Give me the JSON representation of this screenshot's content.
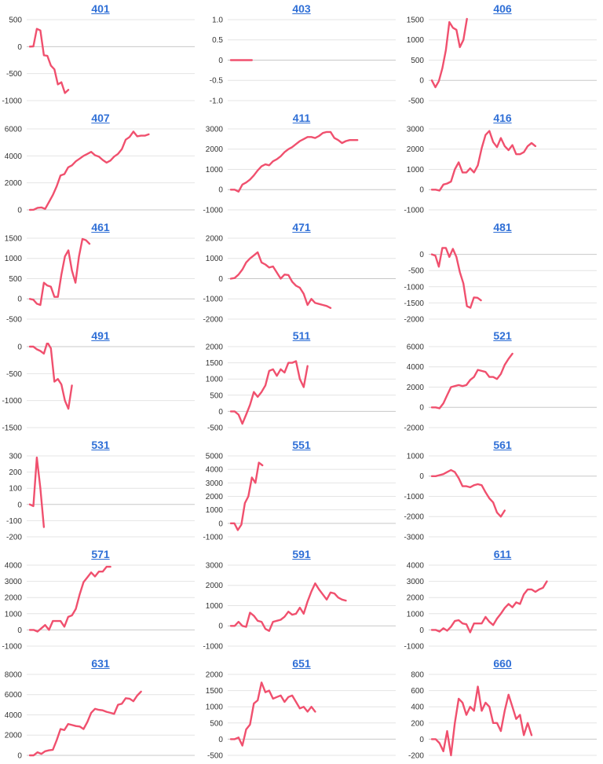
{
  "colors": {
    "series": "#f0506e",
    "title_link": "#2f6fd6"
  },
  "chart_data": [
    {
      "type": "line",
      "title": "401",
      "ylim": [
        -1000,
        500
      ],
      "yticks": [
        500,
        0,
        -500,
        -1000
      ],
      "grid": true,
      "n": 48,
      "values": [
        0,
        5,
        330,
        300,
        -160,
        -170,
        -350,
        -420,
        -700,
        -660,
        -860,
        -800
      ]
    },
    {
      "type": "line",
      "title": "403",
      "ylim": [
        -1.0,
        1.0
      ],
      "yticks": [
        1.0,
        0.5,
        0,
        -0.5,
        -1.0
      ],
      "grid": true,
      "n": 48,
      "values": [
        0,
        0,
        0,
        0,
        0,
        0,
        0
      ]
    },
    {
      "type": "line",
      "title": "406",
      "ylim": [
        -500,
        1500
      ],
      "yticks": [
        1500,
        1000,
        500,
        0,
        -500
      ],
      "grid": true,
      "n": 48,
      "values": [
        0,
        -170,
        -20,
        300,
        750,
        1440,
        1300,
        1250,
        820,
        1000,
        1520
      ]
    },
    {
      "type": "line",
      "title": "407",
      "ylim": [
        0,
        6000
      ],
      "yticks": [
        6000,
        4000,
        2000,
        0
      ],
      "grid": true,
      "n": 44,
      "values": [
        0,
        10,
        150,
        180,
        70,
        580,
        1100,
        1750,
        2550,
        2650,
        3150,
        3300,
        3600,
        3800,
        4000,
        4150,
        4300,
        4050,
        3950,
        3700,
        3500,
        3650,
        3950,
        4150,
        4500,
        5200,
        5400,
        5800,
        5450,
        5500,
        5500,
        5600
      ]
    },
    {
      "type": "line",
      "title": "411",
      "ylim": [
        -1000,
        3000
      ],
      "yticks": [
        3000,
        2000,
        1000,
        0,
        -1000
      ],
      "grid": true,
      "n": 44,
      "values": [
        0,
        0,
        -100,
        250,
        350,
        500,
        700,
        950,
        1150,
        1250,
        1200,
        1400,
        1500,
        1650,
        1850,
        2000,
        2100,
        2250,
        2400,
        2500,
        2600,
        2600,
        2550,
        2650,
        2800,
        2850,
        2850,
        2550,
        2450,
        2300,
        2400,
        2450,
        2450,
        2450
      ]
    },
    {
      "type": "line",
      "title": "416",
      "ylim": [
        -1000,
        3000
      ],
      "yticks": [
        3000,
        2000,
        1000,
        0,
        -1000
      ],
      "grid": true,
      "n": 44,
      "values": [
        0,
        0,
        -50,
        250,
        300,
        400,
        1000,
        1350,
        850,
        850,
        1050,
        850,
        1200,
        2050,
        2700,
        2900,
        2350,
        2100,
        2550,
        2150,
        1950,
        2200,
        1750,
        1750,
        1850,
        2150,
        2300,
        2150
      ]
    },
    {
      "type": "line",
      "title": "461",
      "ylim": [
        -500,
        1500
      ],
      "yticks": [
        1500,
        1000,
        500,
        0,
        -500
      ],
      "grid": true,
      "n": 48,
      "values": [
        0,
        -20,
        -120,
        -150,
        400,
        330,
        300,
        50,
        50,
        600,
        1050,
        1200,
        700,
        400,
        1050,
        1480,
        1450,
        1360
      ]
    },
    {
      "type": "line",
      "title": "471",
      "ylim": [
        -2000,
        2000
      ],
      "yticks": [
        2000,
        1000,
        0,
        -1000,
        -2000
      ],
      "grid": true,
      "n": 44,
      "values": [
        0,
        30,
        200,
        450,
        800,
        1000,
        1150,
        1300,
        800,
        700,
        550,
        600,
        300,
        0,
        200,
        180,
        -150,
        -350,
        -450,
        -750,
        -1300,
        -1000,
        -1200,
        -1250,
        -1300,
        -1350,
        -1450
      ]
    },
    {
      "type": "line",
      "title": "481",
      "ylim": [
        -2000,
        500
      ],
      "yticks": [
        0,
        -500,
        -1000,
        -1500,
        -2000
      ],
      "grid": true,
      "n": 48,
      "values": [
        0,
        -40,
        -380,
        200,
        200,
        -80,
        170,
        -80,
        -550,
        -900,
        -1600,
        -1650,
        -1330,
        -1340,
        -1420
      ]
    },
    {
      "type": "line",
      "title": "491",
      "ylim": [
        -1500,
        0
      ],
      "yticks": [
        0,
        -500,
        -1000,
        -1500
      ],
      "grid": true,
      "n": 48,
      "values": [
        0,
        0,
        -50,
        -80,
        -130,
        80,
        -30,
        -650,
        -600,
        -700,
        -1000,
        -1150,
        -720
      ]
    },
    {
      "type": "line",
      "title": "511",
      "ylim": [
        -500,
        2000
      ],
      "yticks": [
        2000,
        1500,
        1000,
        500,
        0,
        -500
      ],
      "grid": true,
      "n": 44,
      "values": [
        0,
        0,
        -100,
        -380,
        -100,
        200,
        600,
        450,
        600,
        800,
        1250,
        1300,
        1100,
        1300,
        1200,
        1500,
        1500,
        1550,
        1000,
        750,
        1400
      ]
    },
    {
      "type": "line",
      "title": "521",
      "ylim": [
        -2000,
        6000
      ],
      "yticks": [
        6000,
        4000,
        2000,
        0,
        -2000
      ],
      "grid": true,
      "n": 44,
      "values": [
        0,
        0,
        -100,
        400,
        1200,
        2000,
        2100,
        2200,
        2100,
        2200,
        2700,
        3000,
        3700,
        3600,
        3500,
        3000,
        3000,
        2800,
        3300,
        4200,
        4800,
        5300
      ]
    },
    {
      "type": "line",
      "title": "531",
      "ylim": [
        -200,
        300
      ],
      "yticks": [
        300,
        200,
        100,
        0,
        -100,
        -200
      ],
      "grid": true,
      "n": 48,
      "values": [
        0,
        -10,
        290,
        100,
        -140
      ]
    },
    {
      "type": "line",
      "title": "551",
      "ylim": [
        -1000,
        5000
      ],
      "yticks": [
        5000,
        4000,
        3000,
        2000,
        1000,
        0,
        -1000
      ],
      "grid": true,
      "n": 48,
      "values": [
        0,
        0,
        -500,
        -100,
        1500,
        2000,
        3400,
        3000,
        4500,
        4300
      ]
    },
    {
      "type": "line",
      "title": "561",
      "ylim": [
        -3000,
        1000
      ],
      "yticks": [
        1000,
        0,
        -1000,
        -2000,
        -3000
      ],
      "grid": true,
      "n": 44,
      "values": [
        0,
        0,
        50,
        100,
        200,
        300,
        200,
        -100,
        -500,
        -500,
        -550,
        -450,
        -400,
        -450,
        -800,
        -1100,
        -1300,
        -1800,
        -2000,
        -1700
      ]
    },
    {
      "type": "line",
      "title": "571",
      "ylim": [
        -1000,
        4000
      ],
      "yticks": [
        4000,
        3000,
        2000,
        1000,
        0,
        -1000
      ],
      "grid": true,
      "n": 44,
      "values": [
        0,
        0,
        -100,
        100,
        300,
        0,
        550,
        550,
        550,
        200,
        800,
        900,
        1300,
        2200,
        2950,
        3250,
        3550,
        3300,
        3600,
        3600,
        3900,
        3900
      ]
    },
    {
      "type": "line",
      "title": "591",
      "ylim": [
        -1000,
        3000
      ],
      "yticks": [
        3000,
        2000,
        1000,
        0,
        -1000
      ],
      "grid": true,
      "n": 44,
      "values": [
        0,
        0,
        200,
        0,
        -50,
        650,
        500,
        250,
        200,
        -150,
        -250,
        200,
        250,
        300,
        450,
        700,
        550,
        600,
        900,
        600,
        1200,
        1700,
        2100,
        1800,
        1550,
        1300,
        1650,
        1600,
        1400,
        1300,
        1250
      ]
    },
    {
      "type": "line",
      "title": "611",
      "ylim": [
        -1000,
        4000
      ],
      "yticks": [
        4000,
        3000,
        2000,
        1000,
        0,
        -1000
      ],
      "grid": true,
      "n": 44,
      "values": [
        0,
        0,
        -100,
        100,
        -50,
        200,
        550,
        600,
        400,
        350,
        -150,
        400,
        400,
        400,
        800,
        500,
        300,
        700,
        1000,
        1350,
        1600,
        1400,
        1700,
        1600,
        2200,
        2500,
        2500,
        2350,
        2500,
        2600,
        3000
      ]
    },
    {
      "type": "line",
      "title": "631",
      "ylim": [
        0,
        8000
      ],
      "yticks": [
        8000,
        6000,
        4000,
        2000,
        0
      ],
      "grid": true,
      "n": 44,
      "values": [
        0,
        0,
        300,
        150,
        400,
        500,
        550,
        1500,
        2600,
        2500,
        3100,
        3000,
        2900,
        2850,
        2600,
        3300,
        4200,
        4600,
        4500,
        4450,
        4300,
        4200,
        4100,
        5000,
        5100,
        5650,
        5600,
        5350,
        5900,
        6300
      ]
    },
    {
      "type": "line",
      "title": "651",
      "ylim": [
        -500,
        2000
      ],
      "yticks": [
        2000,
        1500,
        1000,
        500,
        0,
        -500
      ],
      "grid": true,
      "n": 44,
      "values": [
        0,
        0,
        50,
        -200,
        300,
        450,
        1100,
        1200,
        1750,
        1450,
        1500,
        1250,
        1300,
        1350,
        1150,
        1300,
        1350,
        1150,
        950,
        1000,
        850,
        1000,
        850
      ]
    },
    {
      "type": "line",
      "title": "660",
      "ylim": [
        -200,
        800
      ],
      "yticks": [
        800,
        600,
        400,
        200,
        0,
        -200
      ],
      "grid": true,
      "n": 44,
      "values": [
        0,
        0,
        -50,
        -150,
        100,
        -200,
        200,
        500,
        450,
        300,
        400,
        350,
        650,
        350,
        450,
        400,
        200,
        200,
        100,
        350,
        550,
        400,
        250,
        300,
        50,
        200,
        50
      ]
    }
  ]
}
